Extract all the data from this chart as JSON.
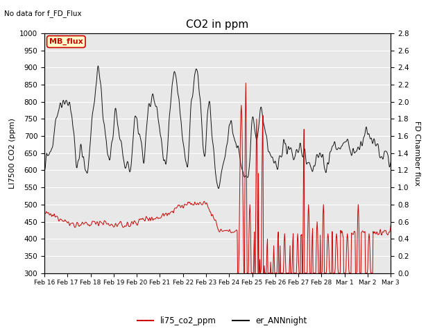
{
  "title": "CO2 in ppm",
  "top_left_text": "No data for f_FD_Flux",
  "ylabel_left": "LI7500 CO2 (ppm)",
  "ylabel_right": "FD Chamber flux",
  "ylim_left": [
    300,
    1000
  ],
  "ylim_right": [
    0.0,
    2.8
  ],
  "xtick_labels": [
    "Feb 16",
    "Feb 17",
    "Feb 18",
    "Feb 19",
    "Feb 20",
    "Feb 21",
    "Feb 22",
    "Feb 23",
    "Feb 24",
    "Feb 25",
    "Feb 26",
    "Feb 27",
    "Feb 28",
    "Mar 1",
    "Mar 2",
    "Mar 3"
  ],
  "legend_entries": [
    "li75_co2_ppm",
    "er_ANNnight"
  ],
  "red_color": "#cc0000",
  "black_color": "#111111",
  "bg_color": "#e8e8e8",
  "grid_color": "#ffffff",
  "mb_flux_label": "MB_flux",
  "mb_flux_bg": "#ffffcc",
  "mb_flux_border": "#cc0000",
  "fig_width": 6.4,
  "fig_height": 4.8,
  "dpi": 100
}
